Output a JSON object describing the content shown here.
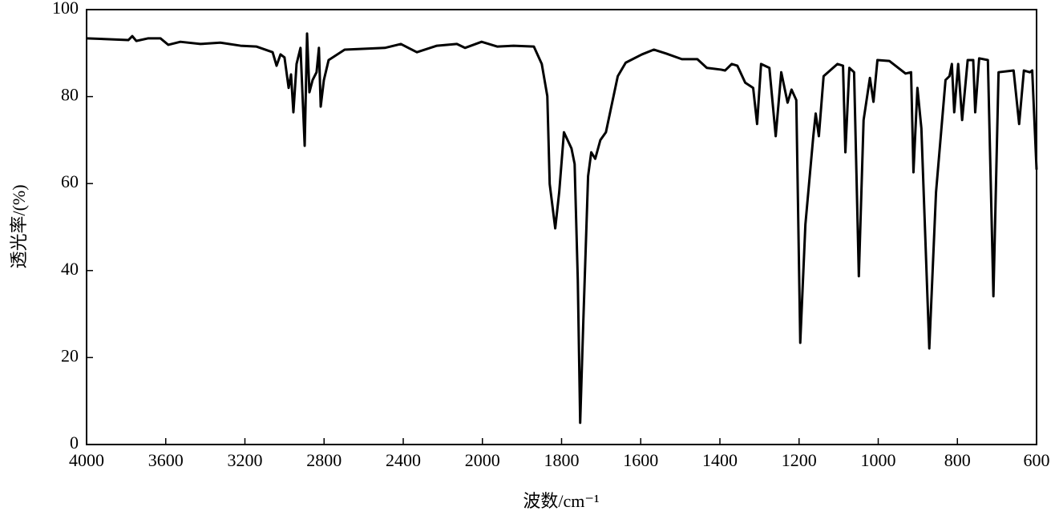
{
  "chart_data": {
    "type": "line",
    "x_label": "波数/cm⁻¹",
    "y_label": "透光率/(%)",
    "x": [
      4000,
      3789,
      3769,
      3749,
      3688,
      3627,
      3587,
      3526,
      3425,
      3324,
      3222,
      3141,
      3060,
      3040,
      3020,
      3000,
      2979,
      2967,
      2955,
      2939,
      2919,
      2898,
      2886,
      2874,
      2858,
      2838,
      2826,
      2817,
      2801,
      2777,
      2696,
      2493,
      2412,
      2331,
      2230,
      2129,
      2088,
      2004,
      1962,
      1921,
      1870,
      1850,
      1836,
      1830,
      1816,
      1806,
      1794,
      1775,
      1767,
      1759,
      1753,
      1745,
      1733,
      1725,
      1715,
      1702,
      1688,
      1658,
      1638,
      1597,
      1567,
      1536,
      1496,
      1457,
      1433,
      1397,
      1387,
      1370,
      1356,
      1336,
      1316,
      1306,
      1296,
      1275,
      1259,
      1245,
      1229,
      1219,
      1207,
      1197,
      1184,
      1164,
      1158,
      1150,
      1138,
      1103,
      1089,
      1083,
      1073,
      1061,
      1049,
      1037,
      1021,
      1012,
      1002,
      972,
      931,
      917,
      911,
      901,
      891,
      871,
      854,
      830,
      820,
      814,
      808,
      798,
      788,
      774,
      760,
      755,
      745,
      723,
      709,
      696,
      658,
      644,
      632,
      617,
      611,
      600
    ],
    "values": [
      93.4,
      93.0,
      93.9,
      92.8,
      93.4,
      93.4,
      91.9,
      92.6,
      92.1,
      92.4,
      91.7,
      91.5,
      90.2,
      87.1,
      89.7,
      89.0,
      82.0,
      85.1,
      76.4,
      87.5,
      91.2,
      68.7,
      94.5,
      81.0,
      83.8,
      85.6,
      91.2,
      77.7,
      83.8,
      88.4,
      90.8,
      91.2,
      92.1,
      90.2,
      91.7,
      92.1,
      91.2,
      92.6,
      91.5,
      91.7,
      91.5,
      87.5,
      80.1,
      59.9,
      49.7,
      58.0,
      71.8,
      68.1,
      64.5,
      37.8,
      5.0,
      28.5,
      61.7,
      67.2,
      65.7,
      70.0,
      71.8,
      84.7,
      87.8,
      89.7,
      90.8,
      89.9,
      88.6,
      88.6,
      86.6,
      86.2,
      86.0,
      87.5,
      87.1,
      83.2,
      82.0,
      73.7,
      87.5,
      86.6,
      70.9,
      85.6,
      78.6,
      81.6,
      79.2,
      23.4,
      50.6,
      70.9,
      76.1,
      70.9,
      84.7,
      87.5,
      87.1,
      67.2,
      86.6,
      85.6,
      38.7,
      74.6,
      84.3,
      78.8,
      88.4,
      88.2,
      85.3,
      85.6,
      62.6,
      82.0,
      72.7,
      22.1,
      58.0,
      83.8,
      84.7,
      87.5,
      76.4,
      87.5,
      74.6,
      88.4,
      88.4,
      76.4,
      88.8,
      88.4,
      34.1,
      85.6,
      86.0,
      73.7,
      86.0,
      85.6,
      86.0,
      63.2
    ],
    "color": "#000000",
    "xlim": [
      4000,
      600
    ],
    "xticks": [
      4000,
      3600,
      3200,
      2800,
      2400,
      2000,
      1800,
      1600,
      1400,
      1200,
      1000,
      800,
      600
    ],
    "ylim": [
      0,
      100
    ],
    "yticks": [
      0,
      20,
      40,
      60,
      80,
      100
    ]
  }
}
